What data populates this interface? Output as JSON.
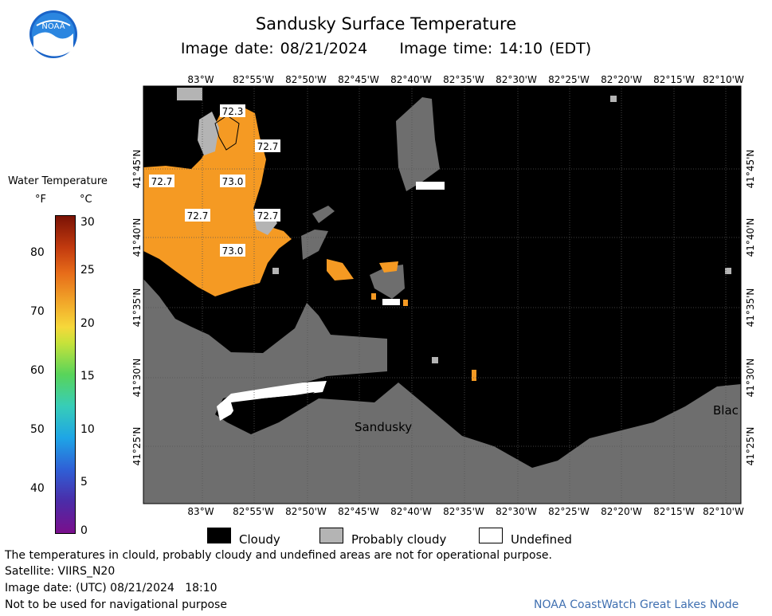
{
  "header": {
    "title": "Sandusky Surface Temperature",
    "subtitle": "Image date: 08/21/2024     Image time: 14:10 (EDT)",
    "logo_text": "NOAA"
  },
  "legend": {
    "title": "Water Temperature",
    "unit_f": "°F",
    "unit_c": "°C",
    "f_ticks": [
      "80",
      "70",
      "60",
      "50",
      "40"
    ],
    "c_ticks": [
      "30",
      "25",
      "20",
      "15",
      "10",
      "5",
      "0"
    ]
  },
  "map": {
    "lon_labels": [
      "83°W",
      "82°55'W",
      "82°50'W",
      "82°45'W",
      "82°40'W",
      "82°35'W",
      "82°30'W",
      "82°25'W",
      "82°20'W",
      "82°15'W",
      "82°10'W"
    ],
    "lat_labels": [
      "41°45'N",
      "41°40'N",
      "41°35'N",
      "41°30'N",
      "41°25'N"
    ],
    "temp_labels": [
      "72.3",
      "72.7",
      "72.7",
      "73.0",
      "72.7",
      "72.7",
      "73.0"
    ],
    "place_labels": [
      "Sandusky",
      "Blac"
    ]
  },
  "key": {
    "cloudy": "Cloudy",
    "probably_cloudy": "Probably cloudy",
    "undefined": "Undefined"
  },
  "footer": {
    "disclaimer": "The temperatures in clould, probably cloudy and undefined areas are not for operational purpose.",
    "satellite": "Satellite: VIIRS_N20",
    "utc_date": "Image date: (UTC) 08/21/2024   18:10",
    "nav_warning": "Not to be used for navigational purpose",
    "credit": "NOAA CoastWatch Great Lakes Node"
  },
  "colors": {
    "land": "#6e6e6e",
    "cloudy": "#000000",
    "probably_cloudy": "#b4b4b4",
    "undefined": "#ffffff",
    "water_73f": "#f59a23",
    "credit": "#3f6fb0"
  }
}
